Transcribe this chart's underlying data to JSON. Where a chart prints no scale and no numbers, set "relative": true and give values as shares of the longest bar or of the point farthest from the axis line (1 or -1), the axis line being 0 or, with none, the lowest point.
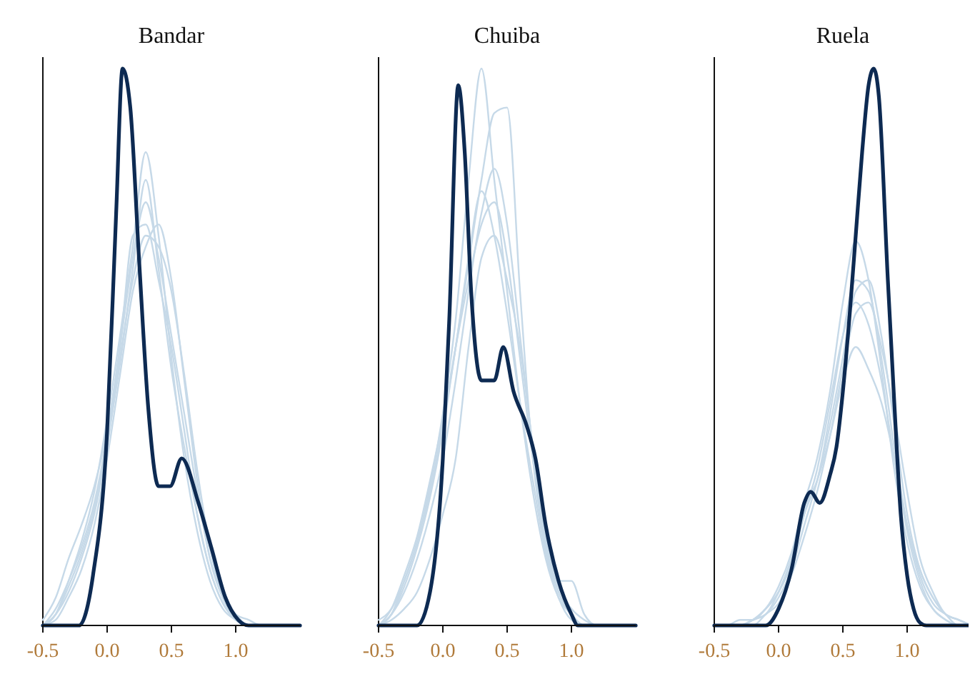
{
  "chart_data": [
    {
      "type": "line",
      "title": "Bandar",
      "relative": true,
      "x": [
        -0.5,
        -0.4,
        -0.3,
        -0.2,
        -0.1,
        0,
        0.1,
        0.2,
        0.3,
        0.4,
        0.5,
        0.6,
        0.7,
        0.8,
        0.9,
        1.0,
        1.1,
        1.2,
        1.3,
        1.4,
        1.5
      ],
      "xlim": [
        -0.5,
        1.5
      ],
      "xticks": [
        {
          "value": -0.5,
          "label": "-0.5"
        },
        {
          "value": 0,
          "label": "0.0"
        },
        {
          "value": 0.5,
          "label": "0.5"
        },
        {
          "value": 1,
          "label": "1.0"
        }
      ],
      "series": [
        {
          "color": "#c6d9e8",
          "values": [
            0,
            0.02,
            0.08,
            0.15,
            0.24,
            0.37,
            0.52,
            0.68,
            0.85,
            0.7,
            0.48,
            0.3,
            0.17,
            0.08,
            0.03,
            0.01,
            0,
            0,
            0,
            0,
            0
          ]
        },
        {
          "color": "#c6d9e8",
          "values": [
            0.01,
            0.05,
            0.12,
            0.18,
            0.25,
            0.35,
            0.5,
            0.7,
            0.72,
            0.62,
            0.5,
            0.35,
            0.2,
            0.1,
            0.04,
            0.01,
            0,
            0,
            0,
            0,
            0
          ]
        },
        {
          "color": "#c6d9e8",
          "values": [
            0,
            0.02,
            0.06,
            0.12,
            0.2,
            0.32,
            0.48,
            0.62,
            0.7,
            0.68,
            0.6,
            0.45,
            0.28,
            0.14,
            0.05,
            0.02,
            0,
            0,
            0,
            0,
            0
          ]
        },
        {
          "color": "#c6d9e8",
          "values": [
            0,
            0.03,
            0.08,
            0.14,
            0.22,
            0.34,
            0.5,
            0.66,
            0.76,
            0.66,
            0.52,
            0.38,
            0.24,
            0.12,
            0.05,
            0.01,
            0,
            0,
            0,
            0,
            0
          ]
        },
        {
          "color": "#c6d9e8",
          "values": [
            0,
            0.01,
            0.05,
            0.1,
            0.18,
            0.3,
            0.45,
            0.6,
            0.68,
            0.72,
            0.62,
            0.44,
            0.26,
            0.12,
            0.05,
            0.02,
            0.01,
            0,
            0,
            0,
            0
          ]
        },
        {
          "color": "#c6d9e8",
          "values": [
            0,
            0.02,
            0.07,
            0.13,
            0.21,
            0.33,
            0.47,
            0.64,
            0.8,
            0.64,
            0.46,
            0.32,
            0.2,
            0.1,
            0.04,
            0.01,
            0,
            0,
            0,
            0,
            0
          ]
        },
        {
          "color": "#0d2a52",
          "x": [
            -0.5,
            -0.3,
            -0.22,
            -0.11,
            0,
            0.07,
            0.12,
            0.18,
            0.25,
            0.32,
            0.4,
            0.49,
            0.58,
            0.71,
            0.81,
            0.92,
            1.02,
            1.1,
            1.5
          ],
          "values": [
            0,
            0,
            0,
            0.09,
            0.35,
            0.74,
            1,
            0.93,
            0.65,
            0.39,
            0.25,
            0.25,
            0.3,
            0.22,
            0.14,
            0.05,
            0.01,
            0,
            0
          ]
        }
      ]
    },
    {
      "type": "line",
      "title": "Chuiba",
      "relative": true,
      "x": [
        -0.5,
        -0.4,
        -0.3,
        -0.2,
        -0.1,
        0,
        0.1,
        0.2,
        0.3,
        0.4,
        0.5,
        0.6,
        0.7,
        0.8,
        0.9,
        1.0,
        1.1,
        1.2,
        1.3,
        1.4,
        1.5
      ],
      "xlim": [
        -0.5,
        1.5
      ],
      "xticks": [
        {
          "value": -0.5,
          "label": "-0.5"
        },
        {
          "value": 0,
          "label": "0.0"
        },
        {
          "value": 0.5,
          "label": "0.5"
        },
        {
          "value": 1,
          "label": "1.0"
        }
      ],
      "series": [
        {
          "color": "#c6d9e8",
          "values": [
            0.01,
            0.03,
            0.08,
            0.15,
            0.25,
            0.38,
            0.55,
            0.8,
            1.0,
            0.8,
            0.6,
            0.4,
            0.24,
            0.12,
            0.05,
            0.02,
            0,
            0,
            0,
            0,
            0
          ]
        },
        {
          "color": "#c6d9e8",
          "values": [
            0,
            0.02,
            0.07,
            0.14,
            0.23,
            0.35,
            0.5,
            0.65,
            0.8,
            0.92,
            0.93,
            0.6,
            0.3,
            0.14,
            0.06,
            0.02,
            0,
            0,
            0,
            0,
            0
          ]
        },
        {
          "color": "#c6d9e8",
          "values": [
            0,
            0.03,
            0.09,
            0.16,
            0.26,
            0.37,
            0.5,
            0.62,
            0.72,
            0.76,
            0.66,
            0.48,
            0.3,
            0.15,
            0.06,
            0.02,
            0,
            0,
            0,
            0,
            0
          ]
        },
        {
          "color": "#c6d9e8",
          "values": [
            0,
            0.02,
            0.06,
            0.12,
            0.2,
            0.3,
            0.44,
            0.6,
            0.74,
            0.82,
            0.72,
            0.52,
            0.32,
            0.16,
            0.07,
            0.03,
            0.01,
            0,
            0,
            0,
            0
          ]
        },
        {
          "color": "#c6d9e8",
          "values": [
            0,
            0.01,
            0.03,
            0.06,
            0.12,
            0.2,
            0.3,
            0.5,
            0.66,
            0.7,
            0.62,
            0.5,
            0.32,
            0.16,
            0.08,
            0.08,
            0.02,
            0,
            0,
            0,
            0
          ]
        },
        {
          "color": "#c6d9e8",
          "values": [
            0,
            0.02,
            0.08,
            0.15,
            0.24,
            0.36,
            0.5,
            0.66,
            0.78,
            0.7,
            0.56,
            0.4,
            0.26,
            0.13,
            0.05,
            0.01,
            0,
            0,
            0,
            0,
            0
          ]
        },
        {
          "color": "#0d2a52",
          "x": [
            -0.5,
            -0.2,
            -0.1,
            0,
            0.05,
            0.12,
            0.17,
            0.22,
            0.3,
            0.4,
            0.47,
            0.55,
            0.65,
            0.72,
            0.8,
            0.9,
            1.0,
            1.05,
            1.5
          ],
          "values": [
            0,
            0,
            0.06,
            0.3,
            0.55,
            0.97,
            0.85,
            0.6,
            0.44,
            0.44,
            0.5,
            0.42,
            0.36,
            0.3,
            0.18,
            0.08,
            0.02,
            0,
            0
          ]
        }
      ]
    },
    {
      "type": "line",
      "title": "Ruela",
      "relative": true,
      "x": [
        -0.5,
        -0.4,
        -0.3,
        -0.2,
        -0.1,
        0,
        0.1,
        0.2,
        0.3,
        0.4,
        0.5,
        0.6,
        0.7,
        0.8,
        0.9,
        1.0,
        1.1,
        1.2,
        1.3,
        1.4,
        1.5
      ],
      "xlim": [
        -0.5,
        1.5
      ],
      "xticks": [
        {
          "value": -0.5,
          "label": "-0.5"
        },
        {
          "value": 0,
          "label": "0.0"
        },
        {
          "value": 0.5,
          "label": "0.5"
        },
        {
          "value": 1,
          "label": "1.0"
        }
      ],
      "series": [
        {
          "color": "#c6d9e8",
          "values": [
            0,
            0,
            0,
            0.01,
            0.03,
            0.07,
            0.13,
            0.22,
            0.3,
            0.42,
            0.58,
            0.69,
            0.62,
            0.46,
            0.28,
            0.15,
            0.07,
            0.03,
            0.01,
            0,
            0
          ]
        },
        {
          "color": "#c6d9e8",
          "values": [
            0,
            0,
            0,
            0.01,
            0.02,
            0.05,
            0.1,
            0.18,
            0.26,
            0.36,
            0.48,
            0.6,
            0.62,
            0.52,
            0.36,
            0.2,
            0.1,
            0.05,
            0.02,
            0.01,
            0
          ]
        },
        {
          "color": "#c6d9e8",
          "values": [
            0,
            0,
            0.01,
            0.01,
            0.03,
            0.06,
            0.12,
            0.2,
            0.26,
            0.34,
            0.44,
            0.5,
            0.46,
            0.4,
            0.3,
            0.18,
            0.09,
            0.04,
            0.02,
            0.01,
            0
          ]
        },
        {
          "color": "#c6d9e8",
          "values": [
            0,
            0,
            0,
            0.01,
            0.02,
            0.06,
            0.12,
            0.22,
            0.26,
            0.38,
            0.52,
            0.62,
            0.6,
            0.48,
            0.32,
            0.18,
            0.1,
            0.05,
            0.02,
            0,
            0
          ]
        },
        {
          "color": "#c6d9e8",
          "values": [
            0,
            0,
            0,
            0,
            0.02,
            0.04,
            0.09,
            0.16,
            0.24,
            0.34,
            0.46,
            0.56,
            0.58,
            0.5,
            0.38,
            0.24,
            0.12,
            0.06,
            0.02,
            0.01,
            0
          ]
        },
        {
          "color": "#c6d9e8",
          "values": [
            0,
            0,
            0,
            0.01,
            0.03,
            0.06,
            0.11,
            0.2,
            0.28,
            0.4,
            0.52,
            0.58,
            0.54,
            0.44,
            0.3,
            0.17,
            0.08,
            0.03,
            0.01,
            0,
            0
          ]
        },
        {
          "color": "#0d2a52",
          "x": [
            -0.5,
            -0.1,
            0,
            0.1,
            0.2,
            0.25,
            0.32,
            0.4,
            0.45,
            0.5,
            0.55,
            0.6,
            0.65,
            0.7,
            0.74,
            0.78,
            0.85,
            0.9,
            0.95,
            1.0,
            1.05,
            1.1,
            1.15,
            1.5
          ],
          "values": [
            0,
            0,
            0.03,
            0.1,
            0.22,
            0.24,
            0.22,
            0.27,
            0.32,
            0.42,
            0.55,
            0.7,
            0.85,
            0.97,
            1,
            0.95,
            0.62,
            0.4,
            0.2,
            0.09,
            0.03,
            0.005,
            0,
            0
          ]
        }
      ]
    }
  ]
}
